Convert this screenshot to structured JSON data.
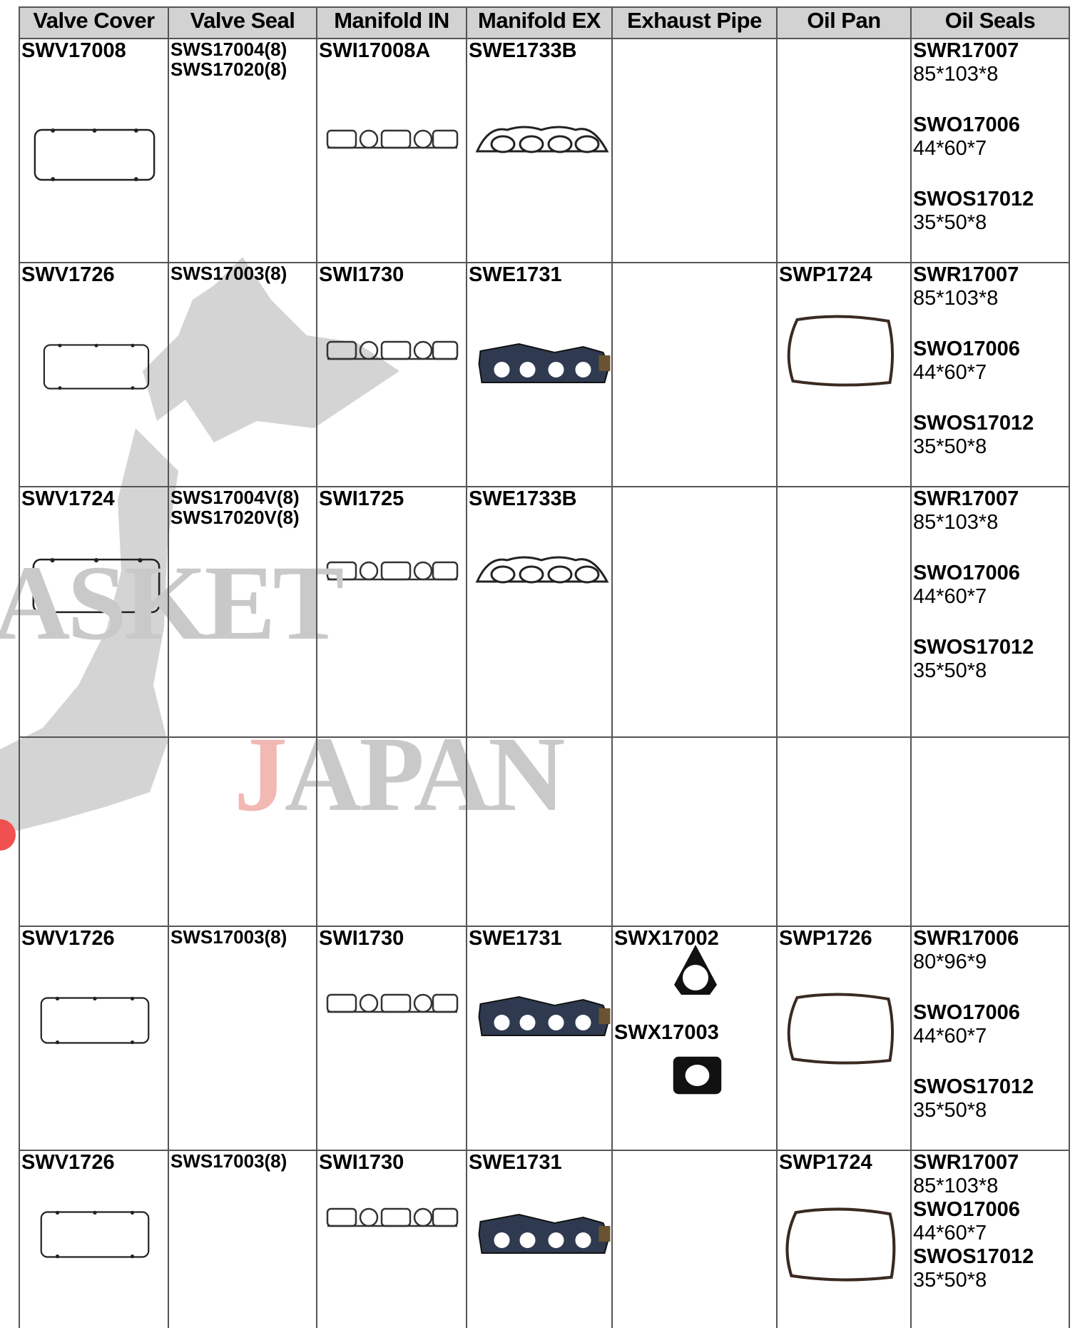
{
  "watermark": [
    "ASKET",
    "JAPAN"
  ],
  "table": {
    "headers": [
      "Valve Cover",
      "Valve Seal",
      "Manifold IN",
      "Manifold EX",
      "Exhaust Pipe",
      "Oil Pan",
      "Oil Seals"
    ],
    "rows": [
      {
        "cells": [
          [
            "SWV17008"
          ],
          [
            "SWS17004(8)",
            "SWS17020(8)"
          ],
          [
            "SWI17008A"
          ],
          [
            "SWE1733B"
          ],
          [],
          []
        ],
        "oil_seals": [
          {
            "code": "SWR17007",
            "size": "85*103*8"
          },
          {
            "code": "SWO17006",
            "size": "44*60*7"
          },
          {
            "code": "SWOS17012",
            "size": "35*50*8"
          }
        ]
      },
      {
        "cells": [
          [
            "SWV1726"
          ],
          [
            "SWS17003(8)"
          ],
          [
            "SWI1730"
          ],
          [
            "SWE1731"
          ],
          [],
          [
            "SWP1724"
          ]
        ],
        "oil_seals": [
          {
            "code": "SWR17007",
            "size": "85*103*8"
          },
          {
            "code": "SWO17006",
            "size": "44*60*7"
          },
          {
            "code": "SWOS17012",
            "size": "35*50*8"
          }
        ]
      },
      {
        "cells": [
          [
            "SWV1724"
          ],
          [
            "SWS17004V(8)",
            "SWS17020V(8)"
          ],
          [
            "SWI1725"
          ],
          [
            "SWE1733B"
          ],
          [],
          []
        ],
        "oil_seals": [
          {
            "code": "SWR17007",
            "size": "85*103*8"
          },
          {
            "code": "SWO17006",
            "size": "44*60*7"
          },
          {
            "code": "SWOS17012",
            "size": "35*50*8"
          }
        ]
      },
      {
        "cells": [
          [],
          [],
          [],
          [],
          [],
          []
        ],
        "oil_seals": []
      },
      {
        "cells": [
          [
            "SWV1726"
          ],
          [
            "SWS17003(8)"
          ],
          [
            "SWI1730"
          ],
          [
            "SWE1731"
          ],
          [
            "SWX17002",
            "SWX17003"
          ],
          [
            "SWP1726"
          ]
        ],
        "oil_seals": [
          {
            "code": "SWR17006",
            "size": "80*96*9"
          },
          {
            "code": "SWO17006",
            "size": "44*60*7"
          },
          {
            "code": "SWOS17012",
            "size": "35*50*8"
          }
        ]
      },
      {
        "cells": [
          [
            "SWV1726"
          ],
          [
            "SWS17003(8)"
          ],
          [
            "SWI1730"
          ],
          [
            "SWE1731"
          ],
          [],
          [
            "SWP1724"
          ]
        ],
        "oil_seals": [
          {
            "code": "SWR17007",
            "size": "85*103*8"
          },
          {
            "code": "SWO17006",
            "size": "44*60*7"
          },
          {
            "code": "SWOS17012",
            "size": "35*50*8"
          }
        ]
      }
    ]
  }
}
